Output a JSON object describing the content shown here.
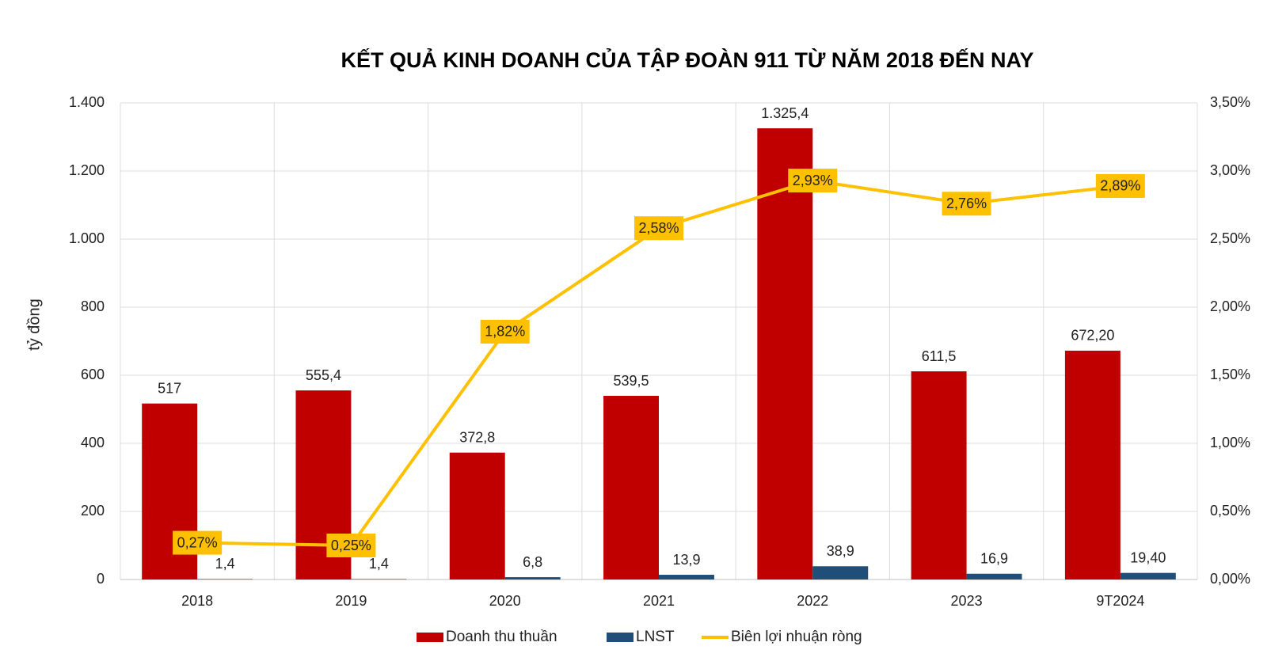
{
  "chart_data": {
    "type": "bar-line",
    "title": "KẾT QUẢ KINH DOANH CỦA TẬP ĐOÀN 911 TỪ NĂM 2018 ĐẾN NAY",
    "y_label": "tỷ đồng",
    "categories": [
      "2018",
      "2019",
      "2020",
      "2021",
      "2022",
      "2023",
      "9T2024"
    ],
    "series": [
      {
        "name": "Doanh thu thuần",
        "type": "bar",
        "color": "#c00000",
        "values": [
          517,
          555.4,
          372.8,
          539.5,
          1325.4,
          611.5,
          672.2
        ],
        "value_labels": [
          "517",
          "555,4",
          "372,8",
          "539,5",
          "1.325,4",
          "611,5",
          "672,20"
        ]
      },
      {
        "name": "LNST",
        "type": "bar",
        "color": "#1f4e79",
        "values": [
          1.4,
          1.4,
          6.8,
          13.9,
          38.9,
          16.9,
          19.4
        ],
        "value_labels": [
          "1,4",
          "1,4",
          "6,8",
          "13,9",
          "38,9",
          "16,9",
          "19,40"
        ]
      },
      {
        "name": "Biên lợi nhuận ròng",
        "type": "line",
        "axis": "y2",
        "color": "#ffc000",
        "values": [
          0.27,
          0.25,
          1.82,
          2.58,
          2.93,
          2.76,
          2.89
        ],
        "value_labels": [
          "0,27%",
          "0,25%",
          "1,82%",
          "2,58%",
          "2,93%",
          "2,76%",
          "2,89%"
        ]
      }
    ],
    "ylim": [
      0,
      1400
    ],
    "yticks": [
      0,
      200,
      400,
      600,
      800,
      {
        "value": 1000,
        "label": "1.000"
      },
      {
        "value": 1200,
        "label": "1.200"
      },
      {
        "value": 1400,
        "label": "1.400"
      }
    ],
    "y2lim": [
      0,
      3.5
    ],
    "y2ticks": [
      {
        "value": 0,
        "label": "0,00%"
      },
      {
        "value": 0.5,
        "label": "0,50%"
      },
      {
        "value": 1,
        "label": "1,00%"
      },
      {
        "value": 1.5,
        "label": "1,50%"
      },
      {
        "value": 2,
        "label": "2,00%"
      },
      {
        "value": 2.5,
        "label": "2,50%"
      },
      {
        "value": 3,
        "label": "3,00%"
      },
      {
        "value": 3.5,
        "label": "3,50%"
      }
    ],
    "grid": true,
    "legend": "bottom"
  }
}
